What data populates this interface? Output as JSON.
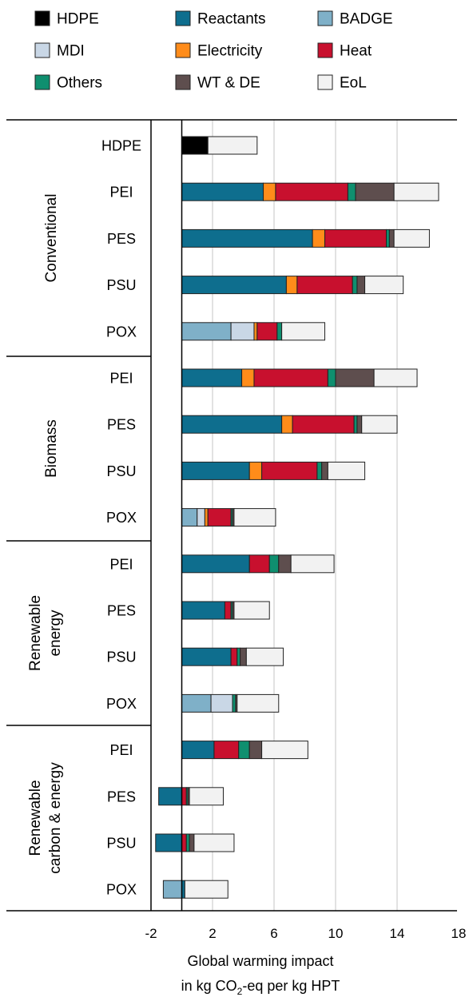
{
  "chart_data": {
    "type": "bar",
    "stacked": true,
    "orientation": "horizontal",
    "xlabel_line1": "Global warming impact",
    "xlabel_line2_pre": "in kg CO",
    "xlabel_line2_sub": "2",
    "xlabel_line2_post": "-eq per kg HPT",
    "xlim": [
      -2,
      18
    ],
    "xticks": [
      -2,
      2,
      6,
      10,
      14,
      18
    ],
    "gridlines": [
      2,
      6,
      10,
      14
    ],
    "legend_position": "top",
    "components": [
      {
        "name": "HDPE",
        "color": "#000000"
      },
      {
        "name": "Reactants",
        "color": "#0e6e8e"
      },
      {
        "name": "BADGE",
        "color": "#7fb0c8"
      },
      {
        "name": "MDI",
        "color": "#c9d7e6"
      },
      {
        "name": "Electricity",
        "color": "#ff8c1a"
      },
      {
        "name": "Heat",
        "color": "#c8102e"
      },
      {
        "name": "Others",
        "color": "#0f8f6f"
      },
      {
        "name": "WT & DE",
        "color": "#5e4e4e"
      },
      {
        "name": "EoL",
        "color": "#f2f2f2"
      }
    ],
    "groups": [
      {
        "label_lines": [
          "Conventional"
        ],
        "bars": [
          {
            "label": "HDPE",
            "segments": [
              {
                "c": "HDPE",
                "v": 1.7
              },
              {
                "c": "EoL",
                "v": 3.2
              }
            ]
          },
          {
            "label": "PEI",
            "segments": [
              {
                "c": "Reactants",
                "v": 5.3
              },
              {
                "c": "Electricity",
                "v": 0.8
              },
              {
                "c": "Heat",
                "v": 4.7
              },
              {
                "c": "Others",
                "v": 0.5
              },
              {
                "c": "WT & DE",
                "v": 2.5
              },
              {
                "c": "EoL",
                "v": 2.9
              }
            ]
          },
          {
            "label": "PES",
            "segments": [
              {
                "c": "Reactants",
                "v": 8.5
              },
              {
                "c": "Electricity",
                "v": 0.8
              },
              {
                "c": "Heat",
                "v": 4.0
              },
              {
                "c": "Others",
                "v": 0.2
              },
              {
                "c": "WT & DE",
                "v": 0.3
              },
              {
                "c": "EoL",
                "v": 2.3
              }
            ]
          },
          {
            "label": "PSU",
            "segments": [
              {
                "c": "Reactants",
                "v": 6.8
              },
              {
                "c": "Electricity",
                "v": 0.7
              },
              {
                "c": "Heat",
                "v": 3.6
              },
              {
                "c": "Others",
                "v": 0.3
              },
              {
                "c": "WT & DE",
                "v": 0.5
              },
              {
                "c": "EoL",
                "v": 2.5
              }
            ]
          },
          {
            "label": "POX",
            "segments": [
              {
                "c": "BADGE",
                "v": 3.2
              },
              {
                "c": "MDI",
                "v": 1.5
              },
              {
                "c": "Electricity",
                "v": 0.2
              },
              {
                "c": "Heat",
                "v": 1.3
              },
              {
                "c": "Others",
                "v": 0.3
              },
              {
                "c": "EoL",
                "v": 2.8
              }
            ]
          }
        ]
      },
      {
        "label_lines": [
          "Biomass"
        ],
        "bars": [
          {
            "label": "PEI",
            "segments": [
              {
                "c": "Reactants",
                "v": 3.9
              },
              {
                "c": "Electricity",
                "v": 0.8
              },
              {
                "c": "Heat",
                "v": 4.8
              },
              {
                "c": "Others",
                "v": 0.5
              },
              {
                "c": "WT & DE",
                "v": 2.5
              },
              {
                "c": "EoL",
                "v": 2.8
              }
            ]
          },
          {
            "label": "PES",
            "segments": [
              {
                "c": "Reactants",
                "v": 6.5
              },
              {
                "c": "Electricity",
                "v": 0.7
              },
              {
                "c": "Heat",
                "v": 4.0
              },
              {
                "c": "Others",
                "v": 0.2
              },
              {
                "c": "WT & DE",
                "v": 0.3
              },
              {
                "c": "EoL",
                "v": 2.3
              }
            ]
          },
          {
            "label": "PSU",
            "segments": [
              {
                "c": "Reactants",
                "v": 4.4
              },
              {
                "c": "Electricity",
                "v": 0.8
              },
              {
                "c": "Heat",
                "v": 3.6
              },
              {
                "c": "Others",
                "v": 0.3
              },
              {
                "c": "WT & DE",
                "v": 0.4
              },
              {
                "c": "EoL",
                "v": 2.4
              }
            ]
          },
          {
            "label": "POX",
            "segments": [
              {
                "c": "BADGE",
                "v": 1.0
              },
              {
                "c": "MDI",
                "v": 0.5
              },
              {
                "c": "Electricity",
                "v": 0.2
              },
              {
                "c": "Heat",
                "v": 1.5
              },
              {
                "c": "Others",
                "v": 0.1
              },
              {
                "c": "WT & DE",
                "v": 0.1
              },
              {
                "c": "EoL",
                "v": 2.7
              }
            ]
          }
        ]
      },
      {
        "label_lines": [
          "Renewable",
          "energy"
        ],
        "bars": [
          {
            "label": "PEI",
            "segments": [
              {
                "c": "Reactants",
                "v": 4.4
              },
              {
                "c": "Heat",
                "v": 1.3
              },
              {
                "c": "Others",
                "v": 0.6
              },
              {
                "c": "WT & DE",
                "v": 0.8
              },
              {
                "c": "EoL",
                "v": 2.8
              }
            ]
          },
          {
            "label": "PES",
            "segments": [
              {
                "c": "Reactants",
                "v": 2.8
              },
              {
                "c": "Heat",
                "v": 0.4
              },
              {
                "c": "Others",
                "v": 0.1
              },
              {
                "c": "WT & DE",
                "v": 0.1
              },
              {
                "c": "EoL",
                "v": 2.3
              }
            ]
          },
          {
            "label": "PSU",
            "segments": [
              {
                "c": "Reactants",
                "v": 3.2
              },
              {
                "c": "Heat",
                "v": 0.4
              },
              {
                "c": "Others",
                "v": 0.2
              },
              {
                "c": "WT & DE",
                "v": 0.4
              },
              {
                "c": "EoL",
                "v": 2.4
              }
            ]
          },
          {
            "label": "POX",
            "segments": [
              {
                "c": "BADGE",
                "v": 1.9
              },
              {
                "c": "MDI",
                "v": 1.4
              },
              {
                "c": "Others",
                "v": 0.2
              },
              {
                "c": "WT & DE",
                "v": 0.1
              },
              {
                "c": "EoL",
                "v": 2.7
              }
            ]
          }
        ]
      },
      {
        "label_lines": [
          "Renewable",
          "carbon & energy"
        ],
        "bars": [
          {
            "label": "PEI",
            "segments": [
              {
                "c": "Reactants",
                "v": 2.1
              },
              {
                "c": "Heat",
                "v": 1.6
              },
              {
                "c": "Others",
                "v": 0.7
              },
              {
                "c": "WT & DE",
                "v": 0.8
              },
              {
                "c": "EoL",
                "v": 3.0
              }
            ]
          },
          {
            "label": "PES",
            "segments": [
              {
                "c": "Reactants",
                "v": -1.5
              },
              {
                "c": "Heat",
                "v": 0.3
              },
              {
                "c": "Others",
                "v": 0.1
              },
              {
                "c": "WT & DE",
                "v": 0.1
              },
              {
                "c": "EoL",
                "v": 2.2
              }
            ]
          },
          {
            "label": "PSU",
            "segments": [
              {
                "c": "Reactants",
                "v": -1.7
              },
              {
                "c": "Heat",
                "v": 0.3
              },
              {
                "c": "Others",
                "v": 0.2
              },
              {
                "c": "WT & DE",
                "v": 0.3
              },
              {
                "c": "EoL",
                "v": 2.6
              }
            ]
          },
          {
            "label": "POX",
            "segments": [
              {
                "c": "BADGE",
                "v": -1.2
              },
              {
                "c": "Reactants",
                "v": 0.2
              },
              {
                "c": "EoL",
                "v": 2.8
              }
            ]
          }
        ]
      }
    ]
  }
}
